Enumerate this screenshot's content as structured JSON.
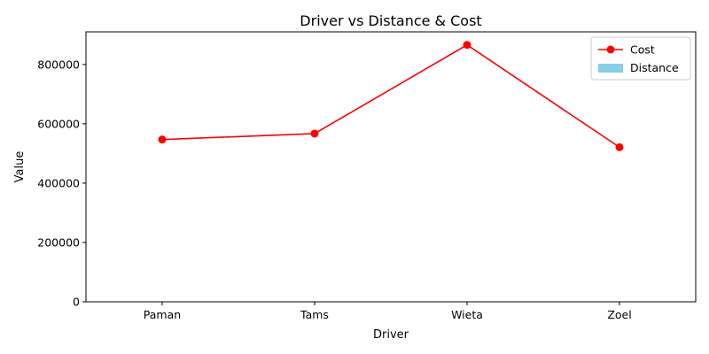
{
  "chart_data": {
    "type": "line",
    "title": "Driver vs Distance & Cost",
    "xlabel": "Driver",
    "ylabel": "Value",
    "categories": [
      "Paman",
      "Tams",
      "Wieta",
      "Zoel"
    ],
    "ylim": [
      0,
      910000
    ],
    "yticks": [
      0,
      200000,
      400000,
      600000,
      800000
    ],
    "grid": false,
    "legend_position": "top-right",
    "series": [
      {
        "name": "Cost",
        "kind": "line",
        "marker": "circle",
        "color": "#ff0000",
        "values": [
          547000,
          567000,
          866000,
          521000
        ]
      },
      {
        "name": "Distance",
        "kind": "bar",
        "color": "#87ceeb",
        "values": [
          null,
          null,
          null,
          null
        ]
      }
    ]
  }
}
